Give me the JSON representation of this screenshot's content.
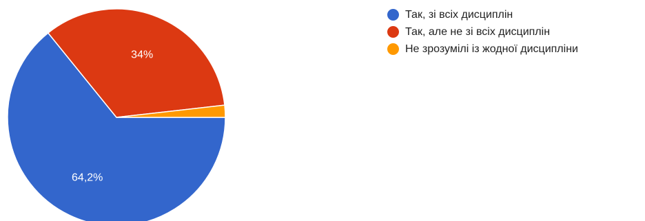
{
  "chart_data": {
    "type": "pie",
    "categories": [
      "Так, зі всіх дисциплін",
      "Так, але не зі всіх дисциплін",
      "Не зрозумілі із жодної дисципліни"
    ],
    "values": [
      64.2,
      34,
      1.8
    ],
    "data_labels": [
      "64,2%",
      "34%",
      ""
    ],
    "colors": [
      "#3366cc",
      "#dc3912",
      "#ff9900"
    ],
    "legend_position": "right"
  },
  "legend": {
    "items": [
      {
        "label": "Так, зі всіх дисциплін",
        "color": "#3366cc"
      },
      {
        "label": "Так, але не зі всіх дисциплін",
        "color": "#dc3912"
      },
      {
        "label": "Не зрозумілі із жодної дисципліни",
        "color": "#ff9900"
      }
    ]
  }
}
